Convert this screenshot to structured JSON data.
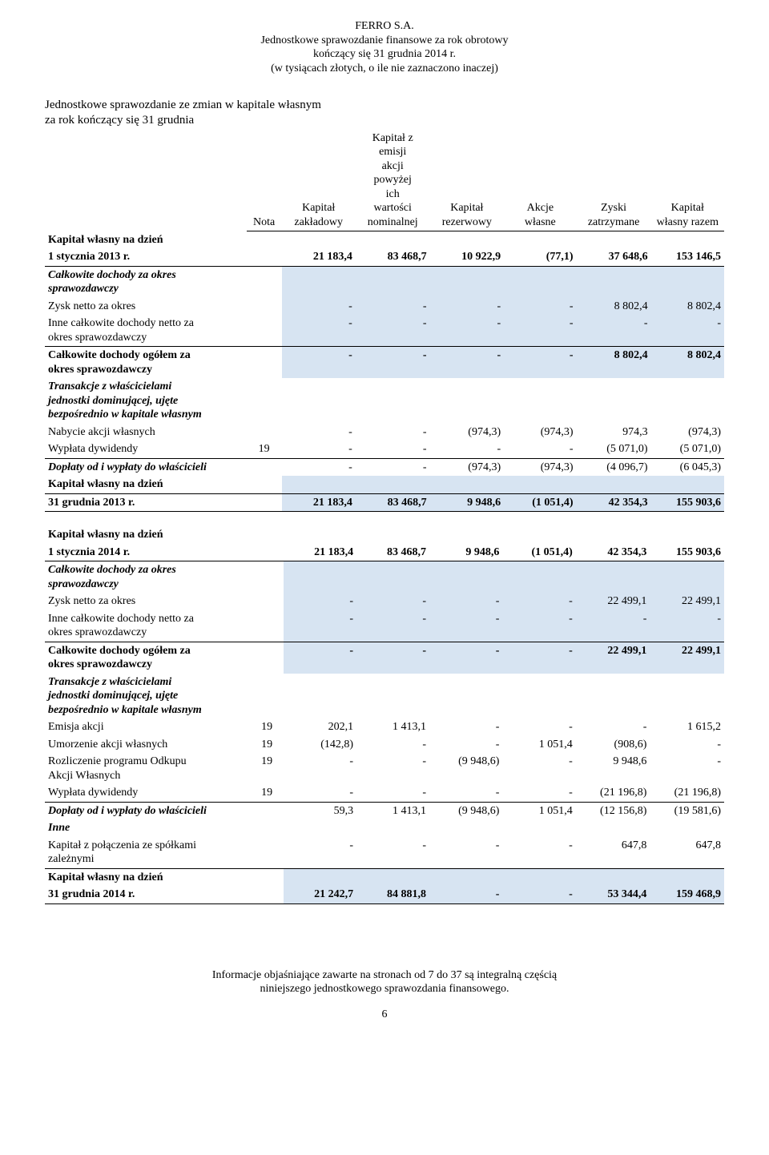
{
  "colors": {
    "background": "#ffffff",
    "text": "#000000",
    "shade": "#d7e4f2",
    "rule": "#000000"
  },
  "typography": {
    "font_family": "Times New Roman",
    "base_fontsize_pt": 11,
    "header_fontsize_pt": 11,
    "title_fontsize_pt": 12
  },
  "header": {
    "line1": "FERRO S.A.",
    "line2": "Jednostkowe sprawozdanie finansowe za rok obrotowy",
    "line3": "kończący się 31 grudnia 2014 r.",
    "line4": "(w tysiącach złotych, o ile nie zaznaczono inaczej)"
  },
  "title": {
    "line1": "Jednostkowe sprawozdanie ze zmian w kapitale własnym",
    "line2": "za rok kończący się 31 grudnia"
  },
  "columns": {
    "c0": "",
    "c1": "Nota",
    "c2": "Kapitał\nzakładowy",
    "c3": "Kapitał z\nemisji\nakcji\npowyżej\nich\nwartości\nnominalnej",
    "c4": "Kapitał\nrezerwowy",
    "c5": "Akcje\nwłasne",
    "c6": "Zyski\nzatrzymane",
    "c7": "Kapitał\nwłasny razem"
  },
  "section1": {
    "opening": {
      "label1": "Kapitał własny na dzień",
      "label2": "1 stycznia 2013 r.",
      "vals": [
        "21 183,4",
        "83 468,7",
        "10 922,9",
        "(77,1)",
        "37 648,6",
        "153 146,5"
      ]
    },
    "ci_header": "Całkowite dochody za okres\nsprawozdawczy",
    "profit": {
      "label": "Zysk netto za okres",
      "vals": [
        "-",
        "-",
        "-",
        "-",
        "8 802,4",
        "8 802,4"
      ]
    },
    "oci": {
      "label": "Inne całkowite dochody netto za\nokres sprawozdawczy",
      "vals": [
        "-",
        "-",
        "-",
        "-",
        "-",
        "-"
      ]
    },
    "tci": {
      "label": "Całkowite dochody ogółem za\nokres sprawozdawczy",
      "vals": [
        "-",
        "-",
        "-",
        "-",
        "8 802,4",
        "8 802,4"
      ]
    },
    "trans_header": "Transakcje z właścicielami\njednostki dominującej, ujęte\nbezpośrednio w kapitale własnym",
    "buyback": {
      "label": "Nabycie akcji własnych",
      "vals": [
        "-",
        "-",
        "(974,3)",
        "(974,3)",
        "974,3",
        "(974,3)"
      ]
    },
    "dividend": {
      "label": "Wypłata dywidendy",
      "nota": "19",
      "vals": [
        "-",
        "-",
        "-",
        "-",
        "(5 071,0)",
        "(5 071,0)"
      ]
    },
    "contrib": {
      "label": "Dopłaty od i wypłaty do właścicieli",
      "vals": [
        "-",
        "-",
        "(974,3)",
        "(974,3)",
        "(4 096,7)",
        "(6 045,3)"
      ]
    },
    "closing": {
      "label1": "Kapitał własny na dzień",
      "label2": "31 grudnia 2013 r.",
      "vals": [
        "21 183,4",
        "83 468,7",
        "9 948,6",
        "(1 051,4)",
        "42 354,3",
        "155 903,6"
      ]
    }
  },
  "section2": {
    "opening": {
      "label1": "Kapitał własny na dzień",
      "label2": "1 stycznia 2014 r.",
      "vals": [
        "21 183,4",
        "83 468,7",
        "9 948,6",
        "(1 051,4)",
        "42 354,3",
        "155 903,6"
      ]
    },
    "ci_header": "Całkowite dochody za okres\nsprawozdawczy",
    "profit": {
      "label": "Zysk netto za okres",
      "vals": [
        "-",
        "-",
        "-",
        "-",
        "22 499,1",
        "22 499,1"
      ]
    },
    "oci": {
      "label": "Inne całkowite dochody netto za\nokres sprawozdawczy",
      "vals": [
        "-",
        "-",
        "-",
        "-",
        "-",
        "-"
      ]
    },
    "tci": {
      "label": "Całkowite dochody ogółem za\nokres sprawozdawczy",
      "vals": [
        "-",
        "-",
        "-",
        "-",
        "22 499,1",
        "22 499,1"
      ]
    },
    "trans_header": "Transakcje z właścicielami\njednostki dominującej, ujęte\nbezpośrednio w kapitale własnym",
    "issue": {
      "label": "Emisja akcji",
      "nota": "19",
      "vals": [
        "202,1",
        "1 413,1",
        "-",
        "-",
        "-",
        "1 615,2"
      ]
    },
    "cancel": {
      "label": "Umorzenie akcji własnych",
      "nota": "19",
      "vals": [
        "(142,8)",
        "-",
        "-",
        "1 051,4",
        "(908,6)",
        "-"
      ]
    },
    "buyback_prog": {
      "label": "Rozliczenie programu Odkupu\nAkcji Własnych",
      "nota": "19",
      "vals": [
        "-",
        "-",
        "(9 948,6)",
        "-",
        "9 948,6",
        "-"
      ]
    },
    "dividend": {
      "label": "Wypłata dywidendy",
      "nota": "19",
      "vals": [
        "-",
        "-",
        "-",
        "-",
        "(21 196,8)",
        "(21 196,8)"
      ]
    },
    "contrib": {
      "label": "Dopłaty od i wypłaty do właścicieli",
      "vals": [
        "59,3",
        "1 413,1",
        "(9 948,6)",
        "1 051,4",
        "(12 156,8)",
        "(19 581,6)"
      ]
    },
    "other_header": "Inne",
    "merger": {
      "label": "Kapitał z połączenia ze spółkami\nzależnymi",
      "vals": [
        "-",
        "-",
        "-",
        "-",
        "647,8",
        "647,8"
      ]
    },
    "closing": {
      "label1": "Kapitał własny na dzień",
      "label2": "31 grudnia 2014 r.",
      "vals": [
        "21 242,7",
        "84 881,8",
        "-",
        "-",
        "53 344,4",
        "159 468,9"
      ]
    }
  },
  "footer": {
    "line1": "Informacje objaśniające zawarte na stronach od 7 do 37 są integralną częścią",
    "line2": "niniejszego jednostkowego sprawozdania finansowego."
  },
  "page_number": "6"
}
